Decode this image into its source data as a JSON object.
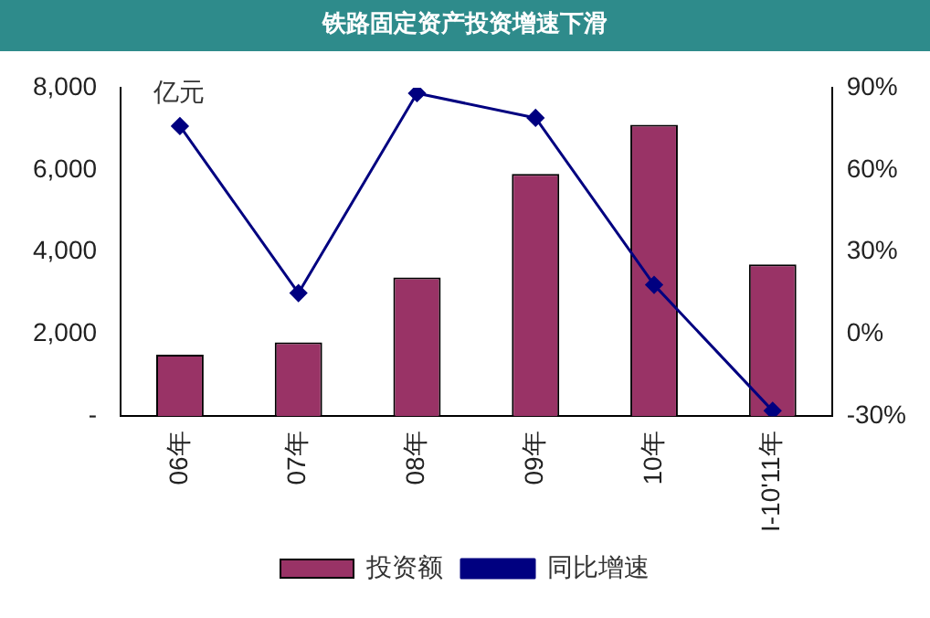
{
  "chart_data": {
    "type": "bar",
    "title": "铁路固定资产投资增速下滑",
    "categories": [
      "06年",
      "07年",
      "08年",
      "09年",
      "10年",
      "I-10'11年"
    ],
    "series": [
      {
        "name": "投资额",
        "color": "#993366",
        "values": [
          1500,
          1800,
          3380,
          5900,
          7100,
          3700
        ]
      },
      {
        "name": "同比增速",
        "type": "line",
        "axis": "y2",
        "color": "#000080",
        "marker": "diamond",
        "values": [
          76,
          15,
          88,
          79,
          18,
          -28
        ]
      }
    ],
    "ylim": [
      0,
      8000
    ],
    "yticks": [
      {
        "value": 0,
        "label": "-"
      },
      {
        "value": 2000,
        "label": "2,000"
      },
      {
        "value": 4000,
        "label": "4,000"
      },
      {
        "value": 6000,
        "label": "6,000"
      },
      {
        "value": 8000,
        "label": "8,000"
      }
    ],
    "y2lim": [
      -30,
      90
    ],
    "y2ticks": [
      {
        "value": -30,
        "label": "-30%"
      },
      {
        "value": 0,
        "label": "0%"
      },
      {
        "value": 30,
        "label": "30%"
      },
      {
        "value": 60,
        "label": "60%"
      },
      {
        "value": 90,
        "label": "90%"
      }
    ],
    "annotations": [
      "亿元"
    ],
    "grid": false,
    "legend": "bottom"
  }
}
